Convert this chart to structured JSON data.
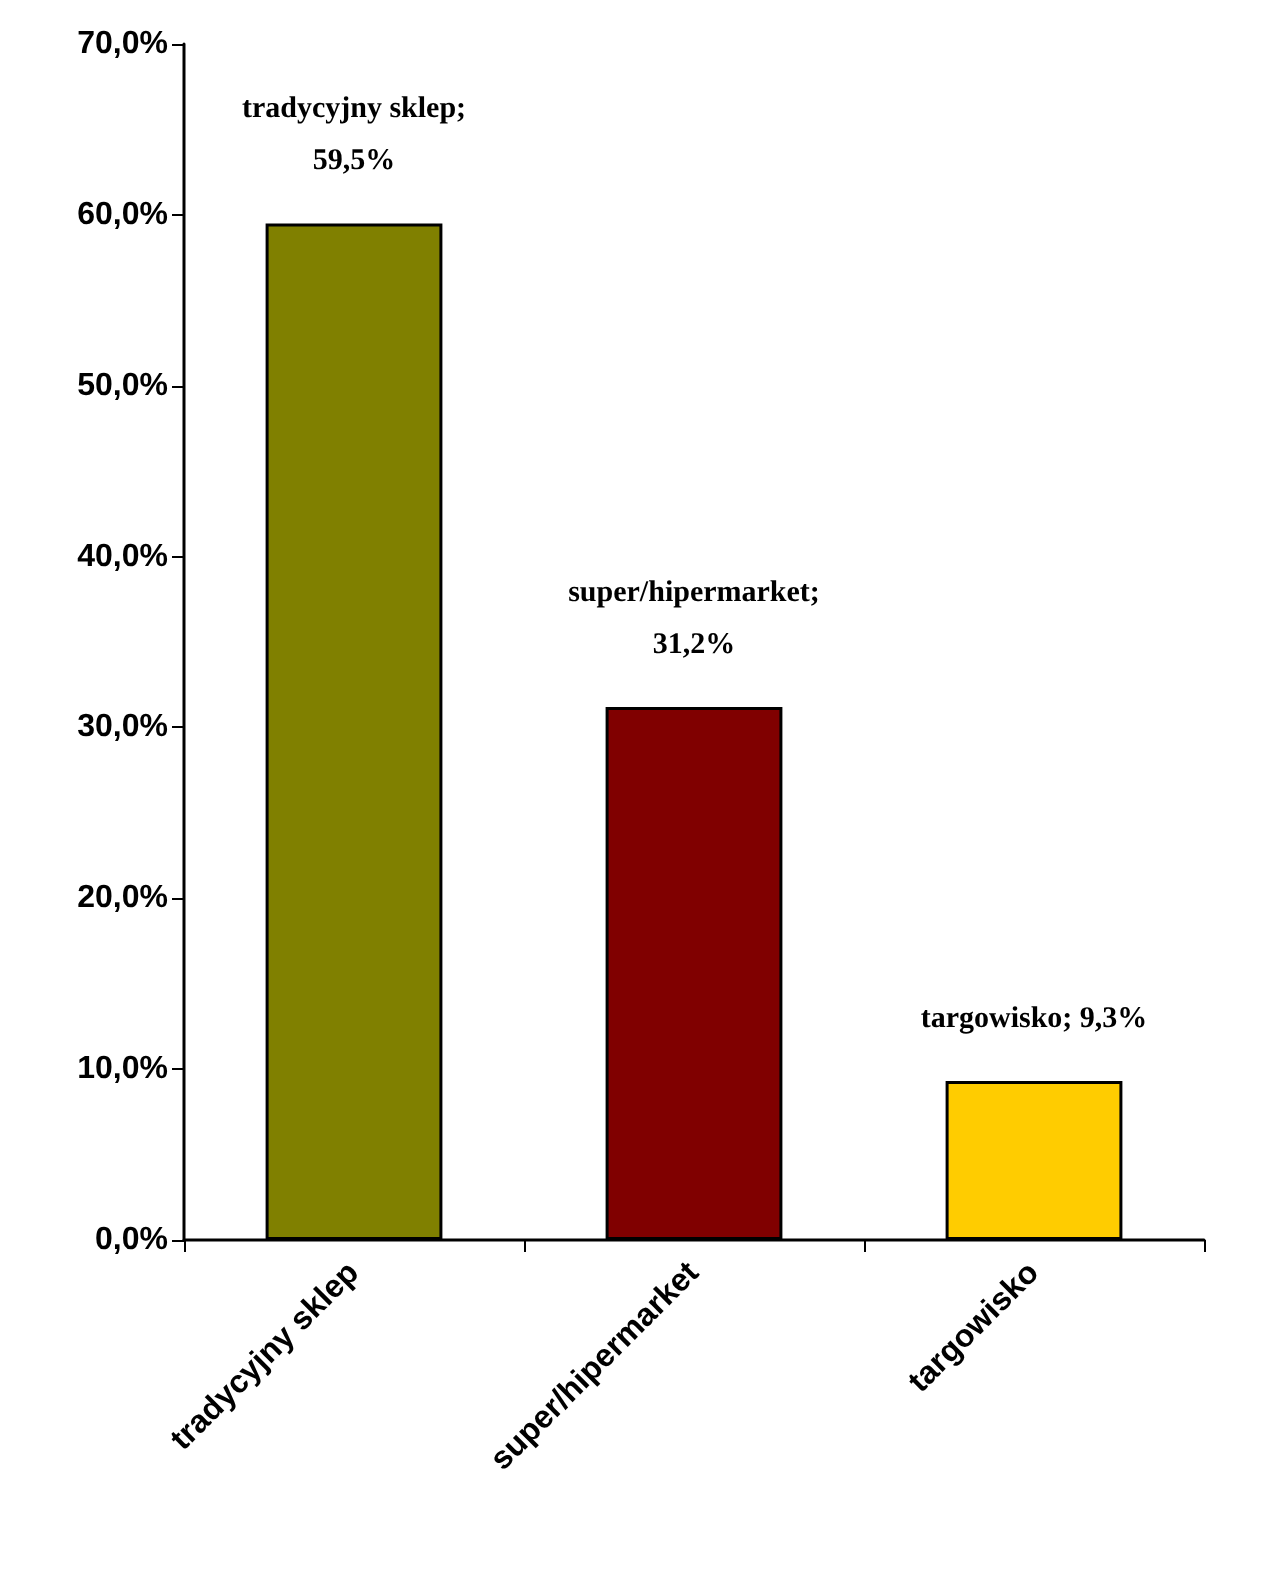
{
  "chart_data": {
    "type": "bar",
    "categories": [
      "tradycyjny sklep",
      "super/hipermarket",
      "targowisko"
    ],
    "values": [
      59.5,
      31.2,
      9.3
    ],
    "colors": [
      "#808000",
      "#800000",
      "#ffcc00"
    ],
    "value_labels": [
      "tradycyjny sklep; 59,5%",
      "super/hipermarket; 31,2%",
      "targowisko; 9,3%"
    ],
    "ylim": [
      0,
      70
    ],
    "yticks": [
      {
        "value": 0,
        "label": "0,0%"
      },
      {
        "value": 10,
        "label": "10,0%"
      },
      {
        "value": 20,
        "label": "20,0%"
      },
      {
        "value": 30,
        "label": "30,0%"
      },
      {
        "value": 40,
        "label": "40,0%"
      },
      {
        "value": 50,
        "label": "50,0%"
      },
      {
        "value": 60,
        "label": "60,0%"
      },
      {
        "value": 70,
        "label": "70,0%"
      }
    ],
    "grid": false
  }
}
